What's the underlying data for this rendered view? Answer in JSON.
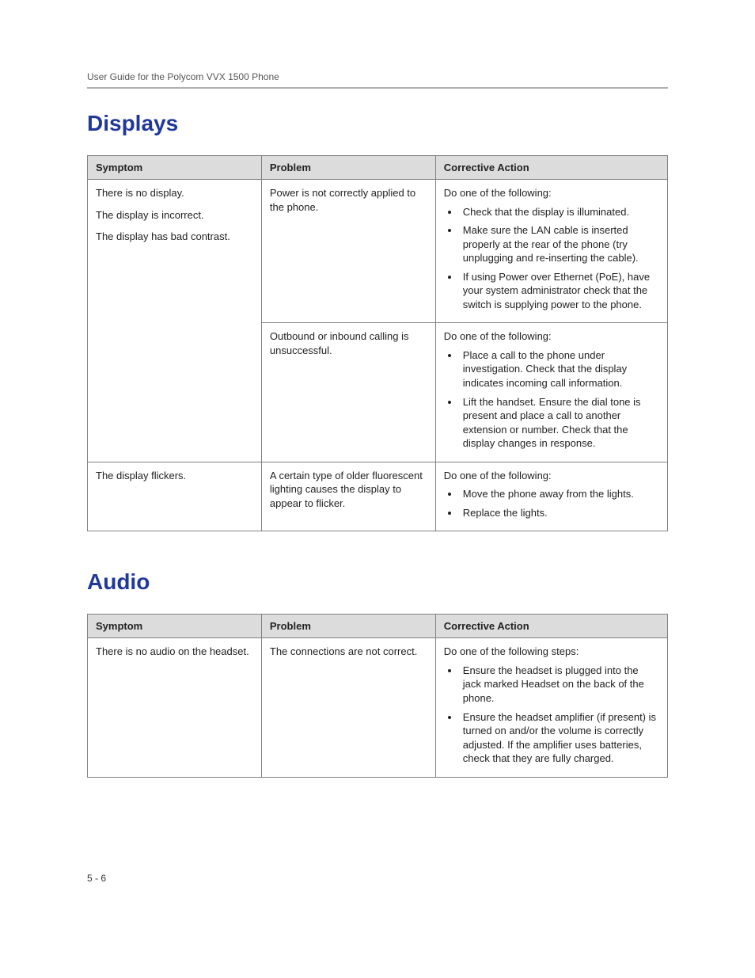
{
  "header": {
    "running": "User Guide for the Polycom VVX 1500 Phone"
  },
  "colors": {
    "heading": "#20389a",
    "th_bg": "#dcdcdc",
    "border": "#808080",
    "hr": "#b0b0b0"
  },
  "typography": {
    "heading_font": "Trebuchet MS",
    "heading_size_pt": 21,
    "body_size_pt": 10,
    "th_size_pt": 10
  },
  "sections": [
    {
      "title": "Displays",
      "columns": [
        "Symptom",
        "Problem",
        "Corrective Action"
      ],
      "rows": [
        {
          "symptom_lines": [
            "There is no display.",
            "The display is incorrect.",
            "The display has bad contrast."
          ],
          "symptom_rowspan": 2,
          "problem": "Power is not correctly applied to the phone.",
          "action_intro": "Do one of the following:",
          "action_items": [
            "Check that the display is illuminated.",
            "Make sure the LAN cable is inserted properly at the rear of the phone (try unplugging and re-inserting the cable).",
            "If using Power over Ethernet (PoE), have your system administrator check that the switch is supplying power to the phone."
          ]
        },
        {
          "symptom_lines": [],
          "problem": "Outbound or inbound calling is unsuccessful.",
          "action_intro": "Do one of the following:",
          "action_items": [
            "Place a call to the phone under investigation. Check that the display indicates incoming call information.",
            "Lift the handset. Ensure the dial tone is present and place a call to another extension or number. Check that the display changes in response."
          ]
        },
        {
          "symptom_lines": [
            "The display flickers."
          ],
          "symptom_rowspan": 1,
          "problem": "A certain type of older fluorescent lighting causes the display to appear to flicker.",
          "action_intro": "Do one of the following:",
          "action_items": [
            "Move the phone away from the lights.",
            "Replace the lights."
          ]
        }
      ]
    },
    {
      "title": "Audio",
      "columns": [
        "Symptom",
        "Problem",
        "Corrective Action"
      ],
      "rows": [
        {
          "symptom_lines": [
            "There is no audio on the headset."
          ],
          "symptom_rowspan": 1,
          "problem": "The connections are not correct.",
          "action_intro": "Do one of the following steps:",
          "action_items": [
            "Ensure the headset is plugged into the jack marked Headset on the back of the phone.",
            "Ensure the headset amplifier (if present) is turned on and/or the volume is correctly adjusted. If the amplifier uses batteries, check that they are fully charged."
          ]
        }
      ]
    }
  ],
  "footer": {
    "page_num": "5 - 6"
  }
}
